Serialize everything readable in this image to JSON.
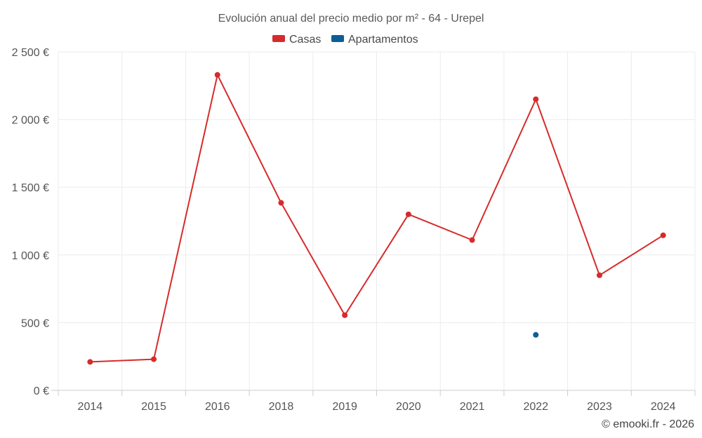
{
  "chart_data": {
    "type": "line",
    "title": "Evolución anual del precio medio por m² - 64 - Urepel",
    "categories": [
      "2014",
      "2015",
      "2016",
      "2018",
      "2019",
      "2020",
      "2021",
      "2022",
      "2023",
      "2024"
    ],
    "series": [
      {
        "name": "Casas",
        "color": "#d62b2b",
        "values": [
          210,
          230,
          2330,
          1385,
          555,
          1300,
          1110,
          2150,
          850,
          1145
        ]
      },
      {
        "name": "Apartamentos",
        "color": "#0b5f95",
        "values": [
          null,
          null,
          null,
          null,
          null,
          null,
          null,
          410,
          null,
          null
        ]
      }
    ],
    "yticks": [
      0,
      500,
      1000,
      1500,
      2000,
      2500
    ],
    "ytick_labels": [
      "0 €",
      "500 €",
      "1 000 €",
      "1 500 €",
      "2 000 €",
      "2 500 €"
    ],
    "ylim": [
      0,
      2500
    ],
    "xlabel": "",
    "ylabel": "",
    "grid": true,
    "legend_position": "top-center"
  },
  "credit": "© emooki.fr - 2026"
}
